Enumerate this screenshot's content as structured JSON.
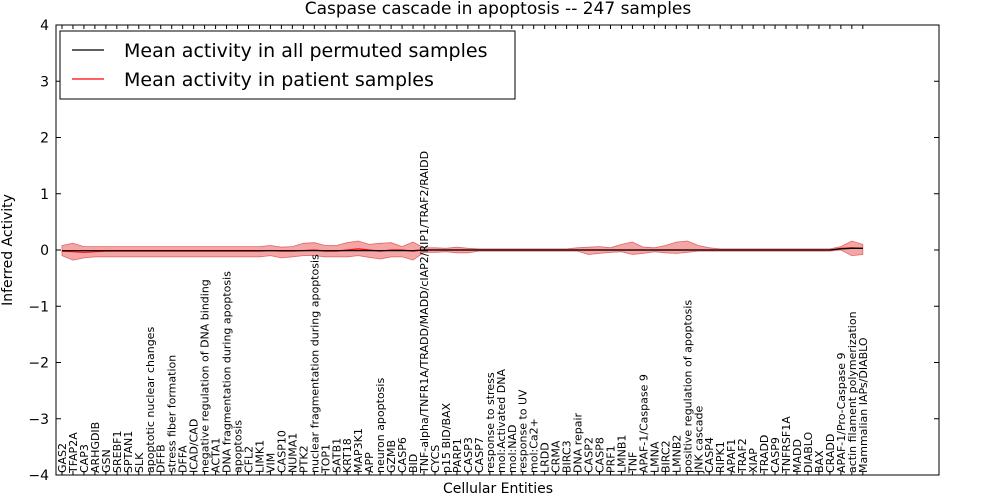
{
  "chart_data": {
    "type": "line",
    "title": "Caspase cascade in apoptosis -- 247 samples",
    "xlabel": "Cellular Entities",
    "ylabel": "Inferred Activity",
    "ylim": [
      -4,
      4
    ],
    "yticks": [
      "4",
      "3",
      "2",
      "1",
      "0",
      "−1",
      "−2",
      "−3",
      "−4"
    ],
    "ytick_values": [
      4,
      3,
      2,
      1,
      0,
      -1,
      -2,
      -3,
      -4
    ],
    "legend": {
      "location": "upper-left",
      "entries": [
        {
          "label": "Mean activity in all permuted samples",
          "color": "#000000"
        },
        {
          "label": "Mean activity in patient samples",
          "color": "#ff0000"
        }
      ]
    },
    "colors": {
      "permuted": "#000000",
      "patient": "#ff0000",
      "band": "#f08080",
      "band_edge": "#e06666"
    },
    "categories": [
      "GAS2",
      "TFAP2A",
      "CAP3",
      "ARHGDIB",
      "GSN",
      "SREBF1",
      "SPTAN1",
      "SLK",
      "apoptotic nuclear changes",
      "DFFB",
      "stress fiber formation",
      "DFFA",
      "ICAD/CAD",
      "negative regulation of DNA binding",
      "ACTA1",
      "DNA fragmentation during apoptosis",
      "apoptosis",
      "CFL2",
      "LIMK1",
      "VIM",
      "CASP10",
      "NUMA1",
      "PTK2",
      "nuclear fragmentation during apoptosis",
      "TOP1",
      "SATB1",
      "KRT18",
      "MAP3K1",
      "APP",
      "neuron apoptosis",
      "GZMB",
      "CASP6",
      "BID",
      "TNF-alpha/TNFR1A/TRADD/MADD/cIAP2/RIP1/TRAF2/RAIDD",
      "CYCS",
      "p15 BID/BAX",
      "PARP1",
      "CASP3",
      "CASP7",
      "response to stress",
      "mol:Activated DNA",
      "mol:NAD",
      "response to UV",
      "mol:Ca2+",
      "LRDD",
      "CRMA",
      "BIRC3",
      "DNA repair",
      "CASP2",
      "CASP8",
      "PRF1",
      "LMNB1",
      "TNF",
      "APAF-1/Caspase 9",
      "LMNA",
      "BIRC2",
      "LMNB2",
      "positive regulation of apoptosis",
      "JNK cascade",
      "CASP4",
      "RIPK1",
      "APAF1",
      "TRAF2",
      "XIAP",
      "TRADD",
      "CASP9",
      "TNFRSF1A",
      "MADD",
      "DIABLO",
      "BAX",
      "CRADD",
      "APAF-1/Pro-Caspase 9",
      "actin filament polymerization",
      "Mammalian IAPs/DIABLO"
    ],
    "series": [
      {
        "name": "Mean activity in patient samples",
        "values": [
          -0.02,
          -0.03,
          -0.04,
          -0.03,
          -0.02,
          -0.02,
          -0.02,
          -0.02,
          -0.02,
          -0.02,
          -0.02,
          -0.02,
          -0.02,
          -0.02,
          -0.02,
          -0.02,
          -0.02,
          -0.02,
          -0.02,
          -0.01,
          -0.02,
          -0.02,
          -0.01,
          0.0,
          -0.02,
          -0.02,
          0.0,
          0.02,
          0.0,
          -0.02,
          0.0,
          0.0,
          -0.02,
          0.0,
          0.0,
          0.0,
          0.0,
          0.0,
          0.0,
          0.0,
          0.0,
          0.0,
          0.0,
          0.0,
          0.0,
          0.0,
          0.0,
          0.0,
          0.0,
          0.0,
          0.0,
          0.0,
          0.0,
          0.0,
          0.0,
          0.0,
          0.0,
          0.0,
          0.0,
          0.0,
          0.0,
          0.0,
          0.0,
          0.0,
          0.0,
          0.0,
          0.0,
          0.0,
          0.0,
          0.0,
          0.0,
          0.03,
          0.04,
          0.03
        ]
      },
      {
        "name": "Mean activity in all permuted samples",
        "values": [
          -0.01,
          -0.01,
          -0.01,
          -0.01,
          -0.01,
          -0.01,
          -0.01,
          -0.01,
          -0.01,
          -0.01,
          -0.01,
          -0.01,
          -0.01,
          -0.01,
          -0.01,
          -0.01,
          -0.01,
          -0.01,
          -0.01,
          -0.01,
          -0.01,
          -0.01,
          -0.01,
          -0.01,
          -0.01,
          -0.01,
          -0.01,
          -0.01,
          -0.01,
          -0.01,
          -0.01,
          -0.01,
          -0.01,
          0.0,
          0.0,
          0.0,
          0.0,
          0.0,
          0.0,
          0.0,
          0.0,
          0.0,
          0.0,
          0.0,
          0.0,
          0.0,
          0.0,
          0.0,
          0.0,
          0.0,
          0.0,
          0.0,
          0.0,
          0.0,
          0.0,
          0.0,
          0.0,
          0.0,
          0.0,
          0.0,
          0.0,
          0.0,
          0.0,
          0.0,
          0.0,
          0.0,
          0.0,
          0.0,
          0.0,
          0.0,
          0.0,
          0.02,
          0.03,
          0.03
        ]
      }
    ],
    "band_upper": [
      0.08,
      0.12,
      0.06,
      0.06,
      0.06,
      0.06,
      0.06,
      0.06,
      0.06,
      0.06,
      0.06,
      0.06,
      0.06,
      0.06,
      0.06,
      0.06,
      0.06,
      0.06,
      0.06,
      0.08,
      0.05,
      0.06,
      0.12,
      0.13,
      0.08,
      0.08,
      0.13,
      0.16,
      0.1,
      0.12,
      0.13,
      0.06,
      0.14,
      0.04,
      0.04,
      0.03,
      0.05,
      0.03,
      0.02,
      0.02,
      0.02,
      0.02,
      0.02,
      0.02,
      0.02,
      0.02,
      0.02,
      0.04,
      0.05,
      0.06,
      0.04,
      0.1,
      0.14,
      0.05,
      0.04,
      0.08,
      0.14,
      0.16,
      0.08,
      0.04,
      0.02,
      0.02,
      0.02,
      0.02,
      0.02,
      0.02,
      0.02,
      0.02,
      0.02,
      0.02,
      0.02,
      0.06,
      0.16,
      0.1
    ],
    "band_lower": [
      -0.1,
      -0.18,
      -0.14,
      -0.12,
      -0.12,
      -0.12,
      -0.12,
      -0.12,
      -0.12,
      -0.12,
      -0.12,
      -0.12,
      -0.12,
      -0.12,
      -0.12,
      -0.12,
      -0.12,
      -0.12,
      -0.12,
      -0.1,
      -0.14,
      -0.12,
      -0.1,
      -0.1,
      -0.12,
      -0.12,
      -0.12,
      -0.1,
      -0.13,
      -0.16,
      -0.12,
      -0.12,
      -0.18,
      -0.04,
      -0.04,
      -0.03,
      -0.05,
      -0.05,
      -0.02,
      -0.02,
      -0.02,
      -0.02,
      -0.02,
      -0.02,
      -0.02,
      -0.02,
      -0.02,
      -0.02,
      -0.08,
      -0.06,
      -0.04,
      -0.03,
      -0.08,
      -0.06,
      -0.03,
      -0.05,
      -0.06,
      -0.04,
      -0.02,
      -0.02,
      -0.02,
      -0.02,
      -0.02,
      -0.02,
      -0.02,
      -0.02,
      -0.02,
      -0.02,
      -0.02,
      -0.02,
      -0.02,
      0.0,
      -0.1,
      -0.08
    ]
  }
}
